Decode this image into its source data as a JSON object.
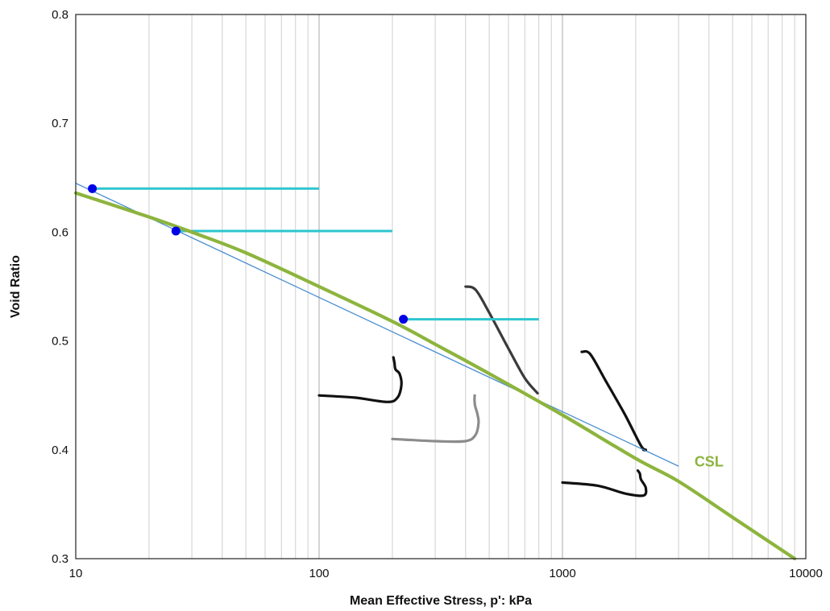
{
  "chart_data": {
    "type": "scatter",
    "title": "",
    "xlabel": "Mean Effective Stress, p': kPa",
    "ylabel": "Void Ratio",
    "x_scale": "log",
    "xlim": [
      10,
      10000
    ],
    "ylim": [
      0.3,
      0.8
    ],
    "x_ticks": [
      10,
      100,
      1000,
      10000
    ],
    "x_tick_labels": [
      "10",
      "100",
      "1000",
      "10000"
    ],
    "y_ticks": [
      0.3,
      0.4,
      0.5,
      0.6,
      0.7,
      0.8
    ],
    "y_tick_labels": [
      "0.3",
      "0.4",
      "0.5",
      "0.6",
      "0.7",
      "0.8"
    ],
    "grid": "x-minor-log",
    "annotation": {
      "text": "CSL",
      "x": 4000,
      "y": 0.389,
      "color": "#8db43d"
    },
    "colors": {
      "csl": "#8db43d",
      "fit": "#4a8fd0",
      "horizontal": "#2ec5cf",
      "points": "#0000e6",
      "paths_dark": "#111111",
      "path_mid": "#3a3a3a",
      "path_gray": "#8c8c8c"
    },
    "series": [
      {
        "kind": "csl_curve",
        "x": [
          10,
          20,
          30,
          50,
          100,
          200,
          300,
          500,
          1000,
          2000,
          3000,
          5000,
          9000
        ],
        "y": [
          0.636,
          0.614,
          0.6,
          0.581,
          0.55,
          0.518,
          0.497,
          0.47,
          0.432,
          0.392,
          0.371,
          0.338,
          0.3
        ]
      },
      {
        "kind": "fit_line",
        "x": [
          10,
          3000
        ],
        "y": [
          0.645,
          0.385
        ]
      },
      {
        "kind": "initial_points",
        "x": [
          11.7,
          25.8,
          222
        ],
        "y": [
          0.64,
          0.601,
          0.52
        ]
      },
      {
        "kind": "horizontal_segments",
        "segments": [
          {
            "x": [
              11.7,
              100
            ],
            "y": [
              0.64,
              0.64
            ]
          },
          {
            "x": [
              25.8,
              200
            ],
            "y": [
              0.601,
              0.601
            ]
          },
          {
            "x": [
              222,
              800
            ],
            "y": [
              0.52,
              0.52
            ]
          }
        ]
      },
      {
        "kind": "test_paths",
        "paths": [
          {
            "color": "dark",
            "x": [
              100,
              140,
              190,
              210,
              218,
              214,
              206,
              204,
              202
            ],
            "y": [
              0.45,
              0.448,
              0.444,
              0.448,
              0.46,
              0.47,
              0.474,
              0.48,
              0.485
            ]
          },
          {
            "color": "gray",
            "x": [
              200,
              300,
              400,
              440,
              452,
              447,
              442,
              437,
              435,
              436
            ],
            "y": [
              0.41,
              0.408,
              0.408,
              0.414,
              0.425,
              0.433,
              0.437,
              0.441,
              0.446,
              0.45
            ]
          },
          {
            "color": "mid",
            "x": [
              400,
              440,
              500,
              600,
              700,
              790
            ],
            "y": [
              0.55,
              0.547,
              0.526,
              0.493,
              0.466,
              0.452
            ]
          },
          {
            "color": "dark",
            "x": [
              1200,
              1300,
              1500,
              1800,
              2100,
              2200,
              2150
            ],
            "y": [
              0.49,
              0.488,
              0.464,
              0.433,
              0.404,
              0.4,
              0.4
            ]
          },
          {
            "color": "dark",
            "x": [
              1000,
              1400,
              1800,
              2150,
              2200,
              2100,
              2080,
              2040
            ],
            "y": [
              0.37,
              0.367,
              0.36,
              0.358,
              0.365,
              0.373,
              0.378,
              0.381
            ]
          }
        ]
      }
    ]
  }
}
